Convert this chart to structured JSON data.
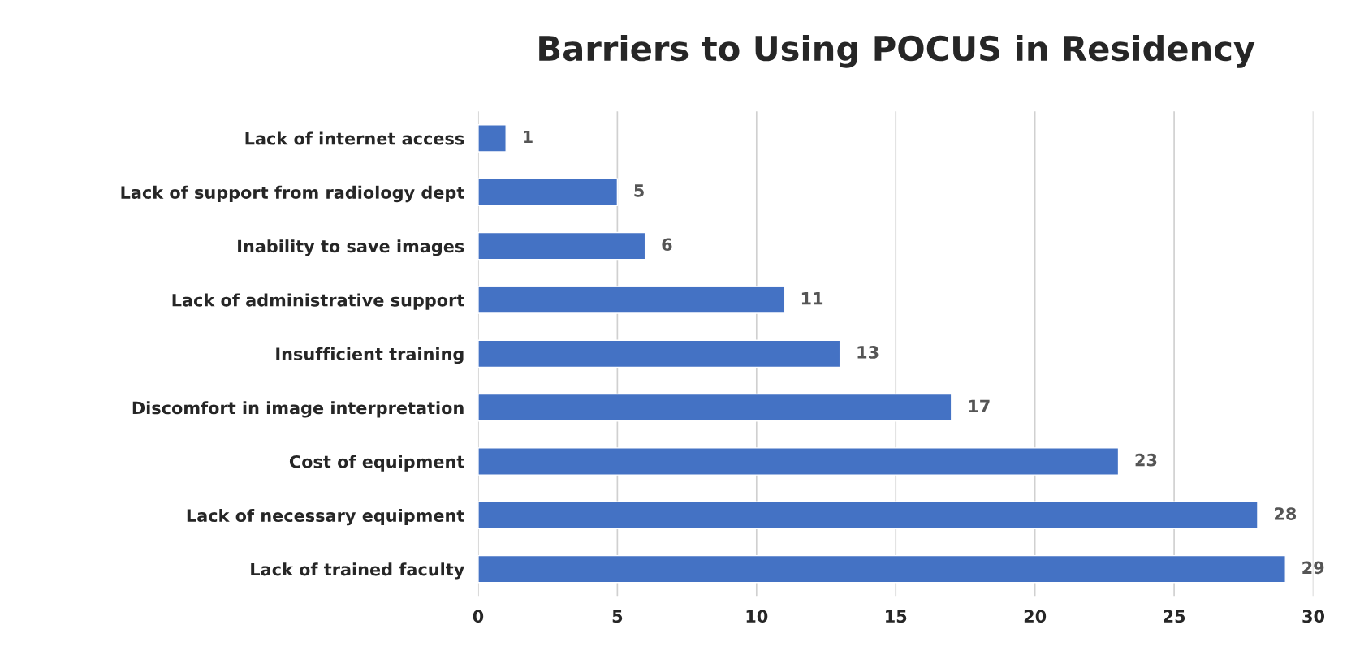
{
  "chart_data": {
    "type": "bar",
    "orientation": "horizontal",
    "title": "Barriers to Using POCUS in Residency",
    "categories": [
      "Lack of internet access",
      "Lack of support from radiology dept",
      "Inability to save images",
      "Lack of administrative support",
      "Insufficient training",
      "Discomfort in image interpretation",
      "Cost of equipment",
      "Lack of necessary equipment",
      "Lack of trained faculty"
    ],
    "values": [
      1,
      5,
      6,
      11,
      13,
      17,
      23,
      28,
      29
    ],
    "color": "#4472c4",
    "xlim": [
      0,
      30
    ],
    "xticks": [
      0,
      5,
      10,
      15,
      20,
      25,
      30
    ],
    "grid": "x",
    "data_labels": true
  }
}
